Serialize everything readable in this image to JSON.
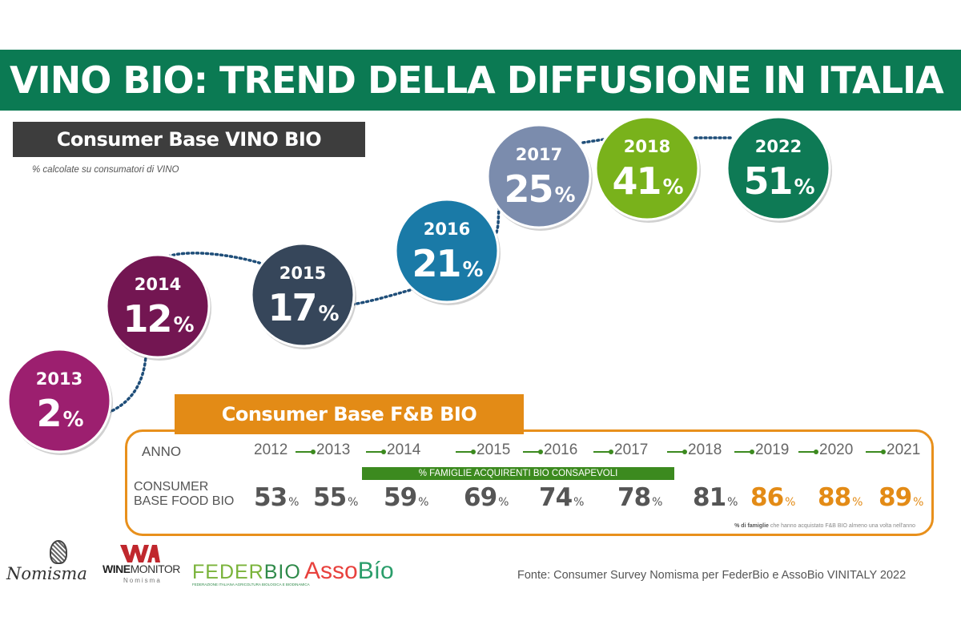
{
  "title": "VINO BIO: TREND DELLA DIFFUSIONE IN ITALIA",
  "vino_section": {
    "header": "Consumer Base VINO BIO",
    "note": "% calcolate  su consumatori di VINO"
  },
  "chart_data": [
    {
      "type": "scatter",
      "title": "Consumer Base VINO BIO",
      "subtitle": "% calcolate su consumatori di VINO",
      "unit": "%",
      "categories": [
        "2013",
        "2014",
        "2015",
        "2016",
        "2017",
        "2018",
        "2022"
      ],
      "values": [
        2,
        12,
        17,
        21,
        25,
        41,
        51
      ],
      "colors": [
        "#9c1f6f",
        "#731652",
        "#36465a",
        "#1a7aa7",
        "#7b8cad",
        "#79b21b",
        "#0e7a55"
      ],
      "connector": "dotted"
    },
    {
      "type": "table",
      "title": "Consumer Base F&B BIO",
      "row_labels": [
        "ANNO",
        "CONSUMER BASE FOOD BIO"
      ],
      "categories": [
        "2012",
        "2013",
        "2014",
        "2015",
        "2016",
        "2017",
        "2018",
        "2019",
        "2020",
        "2021"
      ],
      "values": [
        53,
        55,
        59,
        69,
        74,
        78,
        81,
        86,
        88,
        89
      ],
      "unit": "%",
      "highlight_years": [
        "2019",
        "2020",
        "2021"
      ],
      "highlight_color": "#e38b16",
      "band_label": "% FAMIGLIE ACQUIRENTI BIO CONSAPEVOLI",
      "band_years": [
        "2014",
        "2017"
      ],
      "footnote_bold": "% di famiglie",
      "footnote": " che hanno acquistato F&B BIO almeno una volta nell'anno"
    }
  ],
  "fb_section": {
    "header": "Consumer Base F&B BIO",
    "row_label_year": "ANNO",
    "row_label_value_1": "CONSUMER",
    "row_label_value_2": "BASE FOOD BIO",
    "pct_sign": "%"
  },
  "logos": {
    "nomisma": "Nomisma",
    "winemonitor_bold": "WINE",
    "winemonitor_rest": "MONITOR",
    "winemonitor_sub": "Nomisma",
    "federbio_light": "FEDER",
    "federbio_dark": "BIO",
    "federbio_sub": "FEDERAZIONE ITALIANA AGRICOLTURA BIOLOGICA E BIODINAMICA",
    "assobio_1": "Asso",
    "assobio_2": "Bío"
  },
  "source": "Fonte: Consumer Survey Nomisma per FederBio e AssoBio VINITALY 2022",
  "colors": {
    "title_bar": "#0b7a53",
    "vino_header": "#3d3d3d",
    "fb_header": "#e38b16",
    "fb_green": "#3c8a1f",
    "dots": "#1f4e79"
  }
}
